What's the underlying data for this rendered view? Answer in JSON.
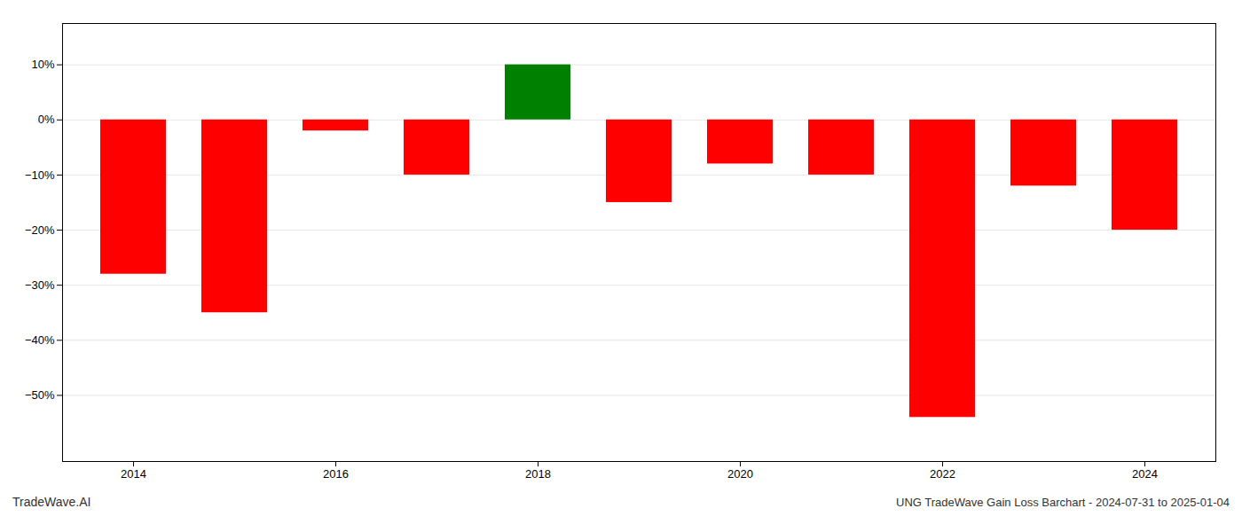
{
  "chart_data": {
    "type": "bar",
    "title": "UNG TradeWave Gain Loss Barchart - 2024-07-31 to 2025-01-04",
    "annotations": [
      "TradeWave.AI"
    ],
    "categories": [
      "2014",
      null,
      "2016",
      null,
      "2018",
      null,
      "2020",
      null,
      "2022",
      null,
      "2024"
    ],
    "values": [
      -0.28,
      -0.35,
      -0.02,
      -0.1,
      0.1,
      -0.15,
      -0.08,
      -0.1,
      -0.54,
      -0.12,
      -0.2
    ],
    "colors": [
      "#ff0000",
      "#ff0000",
      "#ff0000",
      "#ff0000",
      "#008000",
      "#ff0000",
      "#ff0000",
      "#ff0000",
      "#ff0000",
      "#ff0000",
      "#ff0000"
    ],
    "ylim": [
      -0.62,
      0.175
    ],
    "yticks": [
      {
        "value": 0.1,
        "label": "10%"
      },
      {
        "value": 0.0,
        "label": "0%"
      },
      {
        "value": -0.1,
        "label": "−10%"
      },
      {
        "value": -0.2,
        "label": "−20%"
      },
      {
        "value": -0.3,
        "label": "−30%"
      },
      {
        "value": -0.4,
        "label": "−40%"
      },
      {
        "value": -0.5,
        "label": "−50%"
      }
    ],
    "grid": true
  }
}
